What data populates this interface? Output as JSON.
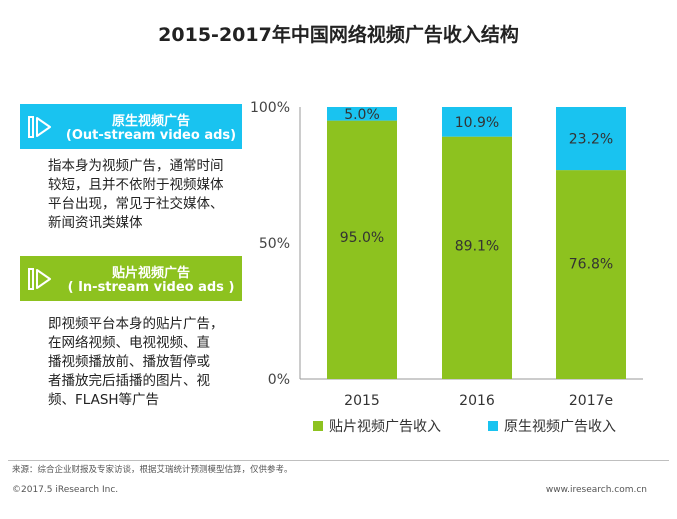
{
  "title": "2015-2017年中国网络视频广告收入结构",
  "panels": {
    "outstream": {
      "title_cn": "原生视频广告",
      "title_en": "(Out-stream video ads)",
      "description": "指本身为视频广告，通常时间\n较短，且并不依附于视频媒体\n平台出现，常见于社交媒体、\n新闻资讯类媒体",
      "color": "#19c3f0"
    },
    "instream": {
      "title_cn": "贴片视频广告",
      "title_en": "( In-stream video ads )",
      "description": "即视频平台本身的贴片广告，\n在网络视频、电视视频、直\n播视频播放前、播放暂停或\n者播放完后插播的图片、视\n频、FLASH等广告",
      "color": "#8dc21f"
    }
  },
  "chart_data": {
    "type": "bar",
    "stacked": true,
    "categories": [
      "2015",
      "2016",
      "2017e"
    ],
    "series": [
      {
        "name": "贴片视频广告收入",
        "values": [
          95.0,
          89.1,
          76.8
        ],
        "labels": [
          "95.0%",
          "89.1%",
          "76.8%"
        ],
        "color": "#8dc21f"
      },
      {
        "name": "原生视频广告收入",
        "values": [
          5.0,
          10.9,
          23.2
        ],
        "labels": [
          "5.0%",
          "10.9%",
          "23.2%"
        ],
        "color": "#19c3f0"
      }
    ],
    "ylim": [
      0,
      100
    ],
    "yticks": [
      0,
      50,
      100
    ],
    "ytick_labels": [
      "0%",
      "50%",
      "100%"
    ],
    "grid": false,
    "legend_position": "bottom"
  },
  "footer": {
    "source": "来源：综合企业财报及专家访谈，根据艾瑞统计预测模型估算，仅供参考。",
    "copyright": "©2017.5 iResearch Inc.",
    "website": "www.iresearch.com.cn"
  }
}
